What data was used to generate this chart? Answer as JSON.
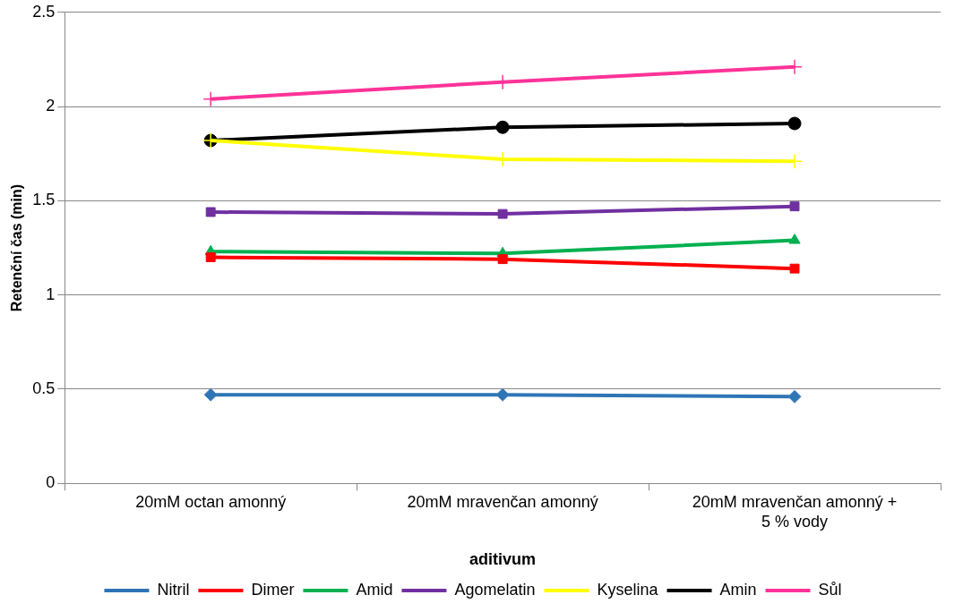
{
  "chart_data": {
    "type": "line",
    "xlabel": "aditivum",
    "ylabel": "Retenční čas (min)",
    "categories": [
      "20mM octan amonný",
      "20mM mravenčan amonný",
      "20mM mravenčan amonný + 5 % vody"
    ],
    "series": [
      {
        "name": "Nitril",
        "color": "#2e75b6",
        "marker": "diamond",
        "values": [
          0.47,
          0.47,
          0.46
        ]
      },
      {
        "name": "Dimer",
        "color": "#ff0000",
        "marker": "square",
        "values": [
          1.2,
          1.19,
          1.14
        ]
      },
      {
        "name": "Amid",
        "color": "#00b050",
        "marker": "triangle",
        "values": [
          1.23,
          1.22,
          1.29
        ]
      },
      {
        "name": "Agomelatin",
        "color": "#7030a0",
        "marker": "square",
        "values": [
          1.44,
          1.43,
          1.47
        ]
      },
      {
        "name": "Kyselina",
        "color": "#ffff00",
        "marker": "cross",
        "values": [
          1.82,
          1.72,
          1.71
        ]
      },
      {
        "name": "Amin",
        "color": "#000000",
        "marker": "circle",
        "values": [
          1.82,
          1.89,
          1.91
        ]
      },
      {
        "name": "Sůl",
        "color": "#ff3399",
        "marker": "cross",
        "values": [
          2.04,
          2.13,
          2.21
        ]
      }
    ],
    "ylim": [
      0,
      2.5
    ],
    "yticks": [
      0,
      0.5,
      1,
      1.5,
      2,
      2.5
    ],
    "grid": "y",
    "legend": "bottom",
    "line_style": "solid"
  }
}
